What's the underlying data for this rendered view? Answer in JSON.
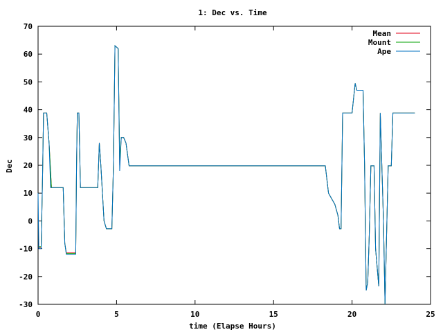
{
  "chart_data": {
    "type": "line",
    "title": "1: Dec vs. Time",
    "xlabel": "time (Elapse Hours)",
    "ylabel": "Dec",
    "xlim": [
      0,
      25
    ],
    "ylim": [
      -30,
      70
    ],
    "xticks": [
      "0",
      "5",
      "10",
      "15",
      "20",
      "25"
    ],
    "yticks": [
      "-30",
      "-20",
      "-10",
      "0",
      "10",
      "20",
      "30",
      "40",
      "50",
      "60",
      "70"
    ],
    "grid": false,
    "legend_position": "top-right",
    "series": [
      {
        "name": "Mean",
        "color": "#e0001a",
        "points": [
          [
            0.05,
            -9.5
          ],
          [
            0.2,
            -9.5
          ],
          [
            0.28,
            15
          ],
          [
            0.35,
            38.8
          ],
          [
            0.55,
            38.8
          ],
          [
            0.7,
            28
          ],
          [
            0.85,
            12
          ],
          [
            1.1,
            12
          ],
          [
            1.5,
            12
          ],
          [
            1.6,
            12
          ],
          [
            1.7,
            -8
          ],
          [
            1.8,
            -11.5
          ],
          [
            2.4,
            -11.5
          ],
          [
            2.45,
            20
          ],
          [
            2.5,
            38.8
          ],
          [
            2.6,
            38.8
          ],
          [
            2.7,
            12
          ],
          [
            3.0,
            12
          ],
          [
            3.8,
            12
          ],
          [
            3.9,
            28
          ],
          [
            4.0,
            20
          ],
          [
            4.2,
            0
          ],
          [
            4.35,
            -2.8
          ],
          [
            4.7,
            -2.8
          ],
          [
            4.8,
            20
          ],
          [
            4.9,
            63
          ],
          [
            5.1,
            62
          ],
          [
            5.2,
            20
          ],
          [
            5.3,
            30
          ],
          [
            5.45,
            30
          ],
          [
            5.6,
            28
          ],
          [
            5.8,
            19.8
          ],
          [
            18.3,
            19.8
          ],
          [
            18.5,
            10
          ],
          [
            18.7,
            8
          ],
          [
            18.9,
            6
          ],
          [
            19.1,
            2
          ],
          [
            19.2,
            -2.8
          ],
          [
            19.3,
            -2.8
          ],
          [
            19.4,
            38.8
          ],
          [
            20.0,
            38.8
          ],
          [
            20.2,
            49.5
          ],
          [
            20.3,
            47
          ],
          [
            20.7,
            47
          ],
          [
            20.8,
            20
          ],
          [
            20.9,
            -25
          ],
          [
            21.0,
            -22
          ],
          [
            21.1,
            -5
          ],
          [
            21.2,
            19.8
          ],
          [
            21.4,
            19.8
          ],
          [
            21.5,
            -10
          ],
          [
            21.7,
            -23.5
          ],
          [
            21.8,
            38.8
          ],
          [
            22.0,
            0
          ],
          [
            22.1,
            -30
          ],
          [
            22.3,
            19.8
          ],
          [
            22.5,
            19.8
          ],
          [
            22.6,
            38.8
          ],
          [
            24.0,
            38.8
          ]
        ]
      },
      {
        "name": "Mount",
        "color": "#00a000",
        "points": [
          [
            0.05,
            -9.3
          ],
          [
            0.2,
            -9.3
          ],
          [
            0.28,
            15
          ],
          [
            0.35,
            38.8
          ],
          [
            0.55,
            38.8
          ],
          [
            0.7,
            28
          ],
          [
            0.85,
            12
          ],
          [
            1.1,
            12
          ],
          [
            1.5,
            12
          ],
          [
            1.6,
            12
          ],
          [
            1.7,
            -8
          ],
          [
            1.8,
            -11.8
          ],
          [
            2.4,
            -11.8
          ],
          [
            2.45,
            20
          ],
          [
            2.5,
            38.8
          ],
          [
            2.6,
            38.8
          ],
          [
            2.7,
            12
          ],
          [
            3.0,
            12
          ],
          [
            3.8,
            12
          ],
          [
            3.9,
            28
          ],
          [
            4.0,
            20
          ],
          [
            4.2,
            0
          ],
          [
            4.35,
            -2.8
          ],
          [
            4.7,
            -2.8
          ],
          [
            4.8,
            20
          ],
          [
            4.9,
            63
          ],
          [
            5.1,
            62
          ],
          [
            5.2,
            22
          ],
          [
            5.3,
            30
          ],
          [
            5.45,
            30
          ],
          [
            5.6,
            28
          ],
          [
            5.8,
            19.8
          ],
          [
            18.3,
            19.8
          ],
          [
            18.5,
            10
          ],
          [
            18.7,
            8
          ],
          [
            18.9,
            6
          ],
          [
            19.1,
            2
          ],
          [
            19.2,
            -2.8
          ],
          [
            19.3,
            -2.8
          ],
          [
            19.4,
            38.8
          ],
          [
            20.0,
            38.8
          ],
          [
            20.2,
            49.5
          ],
          [
            20.3,
            47
          ],
          [
            20.7,
            47
          ],
          [
            20.8,
            20
          ],
          [
            20.9,
            -25
          ],
          [
            21.0,
            -22
          ],
          [
            21.1,
            -5
          ],
          [
            21.2,
            19.8
          ],
          [
            21.4,
            19.8
          ],
          [
            21.5,
            -10
          ],
          [
            21.7,
            -23.5
          ],
          [
            21.8,
            38.8
          ],
          [
            22.0,
            0
          ],
          [
            22.1,
            -30
          ],
          [
            22.3,
            19.8
          ],
          [
            22.5,
            19.8
          ],
          [
            22.6,
            38.8
          ],
          [
            24.0,
            38.8
          ]
        ]
      },
      {
        "name": "Ape",
        "color": "#0070c0",
        "points": [
          [
            0.0,
            10
          ],
          [
            0.05,
            -10
          ],
          [
            0.2,
            -10
          ],
          [
            0.28,
            15
          ],
          [
            0.35,
            38.8
          ],
          [
            0.55,
            38.8
          ],
          [
            0.7,
            28
          ],
          [
            0.8,
            12
          ],
          [
            1.1,
            12
          ],
          [
            1.5,
            12
          ],
          [
            1.6,
            12
          ],
          [
            1.7,
            -8
          ],
          [
            1.8,
            -12
          ],
          [
            2.4,
            -12
          ],
          [
            2.45,
            20
          ],
          [
            2.5,
            38.8
          ],
          [
            2.6,
            38.8
          ],
          [
            2.7,
            12
          ],
          [
            3.0,
            12
          ],
          [
            3.8,
            12
          ],
          [
            3.9,
            28
          ],
          [
            4.0,
            20
          ],
          [
            4.2,
            0
          ],
          [
            4.35,
            -2.8
          ],
          [
            4.7,
            -2.8
          ],
          [
            4.8,
            20
          ],
          [
            4.9,
            63
          ],
          [
            5.1,
            62
          ],
          [
            5.2,
            18
          ],
          [
            5.3,
            30
          ],
          [
            5.45,
            30
          ],
          [
            5.6,
            28
          ],
          [
            5.8,
            19.8
          ],
          [
            18.3,
            19.8
          ],
          [
            18.5,
            10
          ],
          [
            18.7,
            8
          ],
          [
            18.9,
            6
          ],
          [
            19.1,
            2
          ],
          [
            19.2,
            -2.8
          ],
          [
            19.3,
            -2.8
          ],
          [
            19.4,
            38.8
          ],
          [
            20.0,
            38.8
          ],
          [
            20.2,
            49.5
          ],
          [
            20.3,
            47
          ],
          [
            20.7,
            47
          ],
          [
            20.8,
            20
          ],
          [
            20.9,
            -25
          ],
          [
            21.0,
            -22
          ],
          [
            21.1,
            -5
          ],
          [
            21.2,
            19.8
          ],
          [
            21.4,
            19.8
          ],
          [
            21.5,
            -10
          ],
          [
            21.7,
            -23.5
          ],
          [
            21.8,
            38.8
          ],
          [
            22.0,
            0
          ],
          [
            22.1,
            -30
          ],
          [
            22.3,
            19.8
          ],
          [
            22.5,
            19.8
          ],
          [
            22.6,
            38.8
          ],
          [
            24.0,
            38.8
          ]
        ]
      }
    ]
  }
}
